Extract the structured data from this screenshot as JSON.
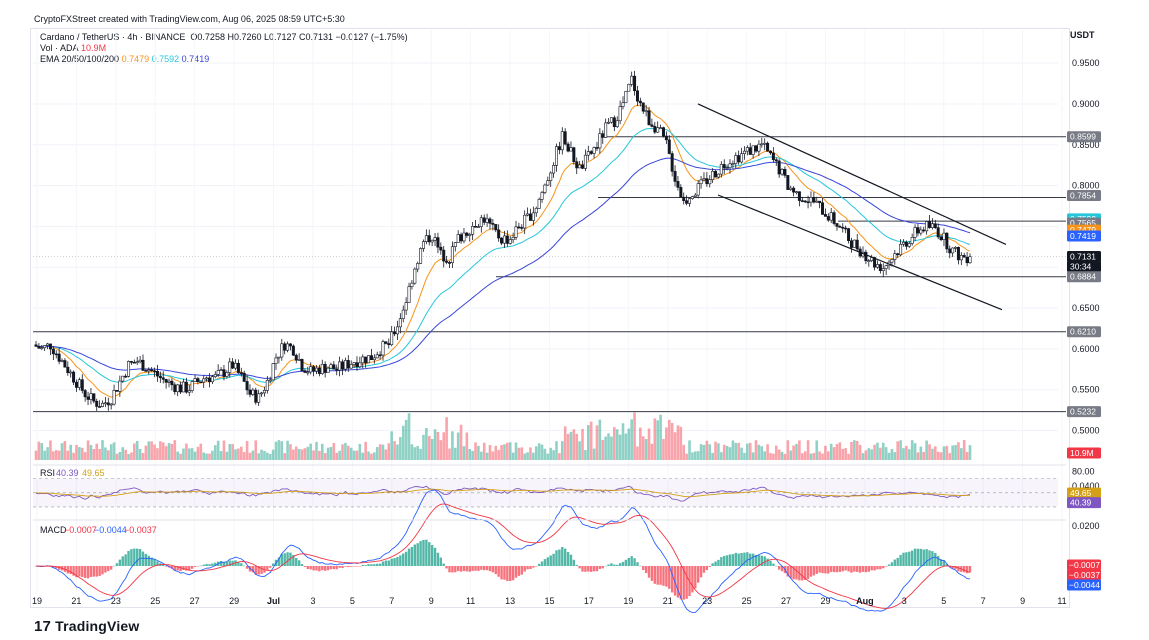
{
  "credit": "CryptoFXStreet created with TradingView.com, Aug 06, 2025 08:59 UTC+5:30",
  "legend": {
    "symbol": "Cardano / TetherUS · 4h · BINANCE",
    "ohlc": "O0.7258  H0.7260  L0.7127  C0.7131  −0.0127 (−1.75%)",
    "vol_label": "Vol · ADA",
    "vol_value": "10.9M",
    "ema_label": "EMA 20/50/100/200",
    "ema20": "0.7479",
    "ema50": "0.7592",
    "ema100": "0.7419"
  },
  "currency": "USDT",
  "colors": {
    "up": "#089981",
    "down": "#f23645",
    "ema20": "#f7931a",
    "ema50": "#26c6da",
    "ema100": "#3946d8",
    "rsi": "#7e57c2",
    "rsi_ma": "#d4a017",
    "macd": "#2962ff",
    "signal": "#f23645"
  },
  "price_axis": [
    "0.9500",
    "0.9000",
    "0.8500",
    "0.8000",
    "0.7500",
    "0.7000",
    "0.6500",
    "0.6000",
    "0.5500",
    "0.5000"
  ],
  "price_tags": [
    {
      "label": "0.8599",
      "kind": "level"
    },
    {
      "label": "0.7854",
      "kind": "level"
    },
    {
      "label": "0.7592",
      "kind": "ema50"
    },
    {
      "label": "0.7565",
      "kind": "level"
    },
    {
      "label": "0.7479",
      "kind": "ema20"
    },
    {
      "label": "0.7419",
      "kind": "ema100"
    },
    {
      "label": "0.7131",
      "kind": "last"
    },
    {
      "label": "30:34",
      "kind": "countdown"
    },
    {
      "label": "0.6884",
      "kind": "level"
    },
    {
      "label": "0.6210",
      "kind": "level"
    },
    {
      "label": "0.5232",
      "kind": "level"
    },
    {
      "label": "10.9M",
      "kind": "volume"
    }
  ],
  "rsi": {
    "label": "RSI",
    "value": "40.39",
    "ma": "49.65",
    "axis": "80.00",
    "tag_ma": "49.65",
    "tag_value": "40.39"
  },
  "macd": {
    "label": "MACD",
    "hist": "−0.0007",
    "macd": "−0.0044",
    "signal": "−0.0037",
    "axis": [
      "0.0400",
      "0.0200"
    ],
    "tags": [
      "−0.0007",
      "−0.0037",
      "−0.0044"
    ]
  },
  "time_axis": [
    "19",
    "21",
    "23",
    "25",
    "27",
    "29",
    "Jul",
    "3",
    "5",
    "7",
    "9",
    "11",
    "13",
    "15",
    "17",
    "19",
    "21",
    "23",
    "25",
    "27",
    "29",
    "Aug",
    "3",
    "5",
    "7",
    "9",
    "11"
  ],
  "logo": "TradingView",
  "chart_data": {
    "type": "candlestick",
    "title": "Cardano / TetherUS · 4h · BINANCE",
    "ylim": [
      0.47,
      0.96
    ],
    "x_start": "Jun 19",
    "x_end": "Aug 6",
    "levels": [
      0.8599,
      0.7854,
      0.7565,
      0.6884,
      0.621,
      0.5232
    ],
    "close_series": [
      0.605,
      0.6,
      0.605,
      0.59,
      0.575,
      0.56,
      0.545,
      0.535,
      0.532,
      0.54,
      0.56,
      0.58,
      0.585,
      0.578,
      0.57,
      0.562,
      0.556,
      0.552,
      0.552,
      0.56,
      0.566,
      0.565,
      0.572,
      0.58,
      0.565,
      0.545,
      0.54,
      0.56,
      0.59,
      0.606,
      0.6,
      0.58,
      0.572,
      0.576,
      0.578,
      0.575,
      0.58,
      0.585,
      0.588,
      0.59,
      0.6,
      0.605,
      0.63,
      0.66,
      0.7,
      0.73,
      0.74,
      0.715,
      0.712,
      0.735,
      0.745,
      0.755,
      0.76,
      0.745,
      0.735,
      0.735,
      0.75,
      0.76,
      0.775,
      0.8,
      0.83,
      0.86,
      0.84,
      0.82,
      0.835,
      0.85,
      0.87,
      0.88,
      0.9,
      0.93,
      0.9,
      0.88,
      0.87,
      0.85,
      0.81,
      0.78,
      0.79,
      0.8,
      0.81,
      0.82,
      0.83,
      0.835,
      0.84,
      0.845,
      0.85,
      0.835,
      0.82,
      0.8,
      0.79,
      0.785,
      0.78,
      0.77,
      0.76,
      0.75,
      0.735,
      0.725,
      0.715,
      0.705,
      0.7,
      0.712,
      0.725,
      0.735,
      0.745,
      0.75,
      0.748,
      0.735,
      0.72,
      0.713
    ],
    "ema20": "0.7479",
    "ema50": "0.7592",
    "ema100": "0.7419",
    "volume_last": "10.9M",
    "rsi": 40.39,
    "rsi_ma": 49.65,
    "macd": -0.0044,
    "macd_signal": -0.0037,
    "macd_hist": -0.0007
  }
}
